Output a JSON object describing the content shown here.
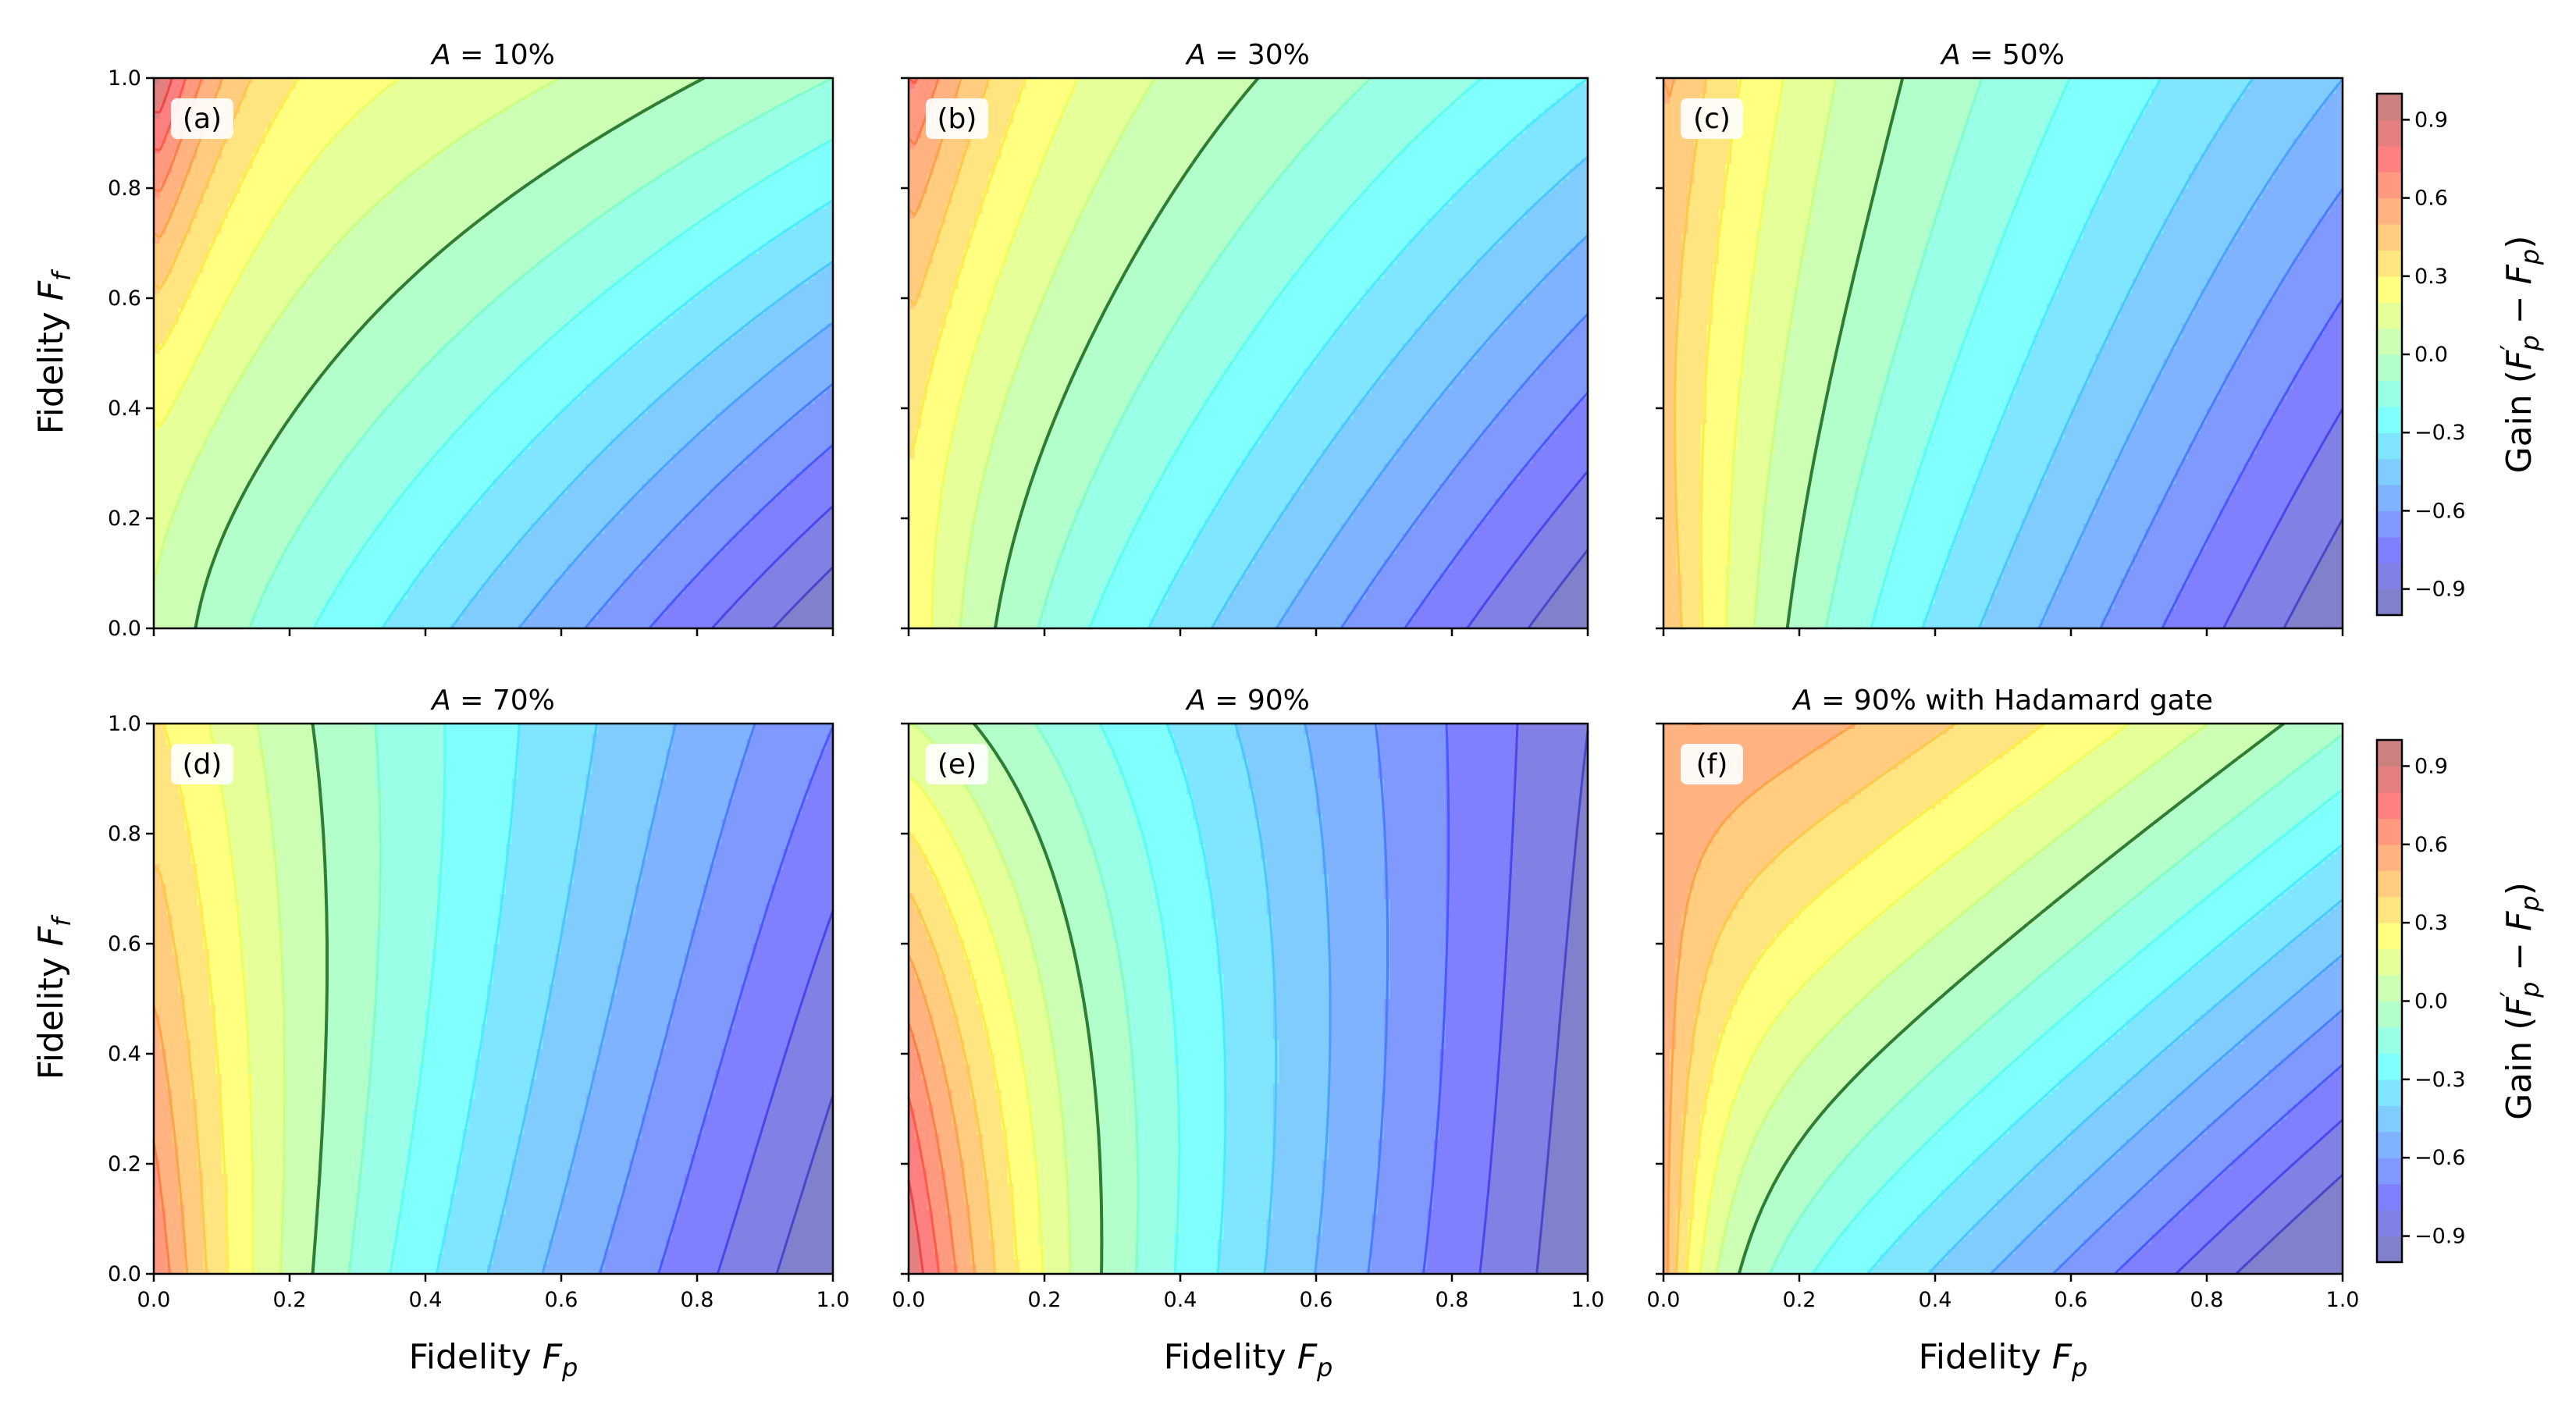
{
  "chart_data": {
    "type": "heatmap",
    "description_kind": "filled contour grid (2 rows x 3 columns) of gain vs fidelities",
    "xlabel": "Fidelity F_p",
    "ylabel": "Fidelity F_f",
    "xlim": [
      0.0,
      1.0
    ],
    "ylim": [
      0.0,
      1.0
    ],
    "xticks": [
      "0.0",
      "0.2",
      "0.4",
      "0.6",
      "0.8",
      "1.0"
    ],
    "yticks": [
      "0.0",
      "0.2",
      "0.4",
      "0.6",
      "0.8",
      "1.0"
    ],
    "contour_levels": [
      -1.0,
      -0.9,
      -0.8,
      -0.7,
      -0.6,
      -0.5,
      -0.4,
      -0.3,
      -0.2,
      -0.1,
      0.0,
      0.1,
      0.2,
      0.3,
      0.4,
      0.5,
      0.6,
      0.7,
      0.8,
      0.9,
      1.0
    ],
    "zero_contour": "dashed dark-green line",
    "colorbar": {
      "label": "Gain (F'_p − F_p)",
      "range": [
        -1.0,
        1.0
      ],
      "ticks": [
        "0.9",
        "0.6",
        "0.3",
        "0.0",
        "−0.3",
        "−0.6",
        "−0.9"
      ],
      "tick_values": [
        0.9,
        0.6,
        0.3,
        0.0,
        -0.3,
        -0.6,
        -0.9
      ],
      "colormap": "jet",
      "alpha": 0.5
    },
    "panels": [
      {
        "label": "(a)",
        "title": "A = 10%",
        "A": 0.1,
        "hadamard": false
      },
      {
        "label": "(b)",
        "title": "A = 30%",
        "A": 0.3,
        "hadamard": false
      },
      {
        "label": "(c)",
        "title": "A = 50%",
        "A": 0.5,
        "hadamard": false
      },
      {
        "label": "(d)",
        "title": "A = 70%",
        "A": 0.7,
        "hadamard": false
      },
      {
        "label": "(e)",
        "title": "A = 90%",
        "A": 0.9,
        "hadamard": false
      },
      {
        "label": "(f)",
        "title": "A = 90% with Hadamard gate",
        "A": 0.9,
        "hadamard": true
      }
    ]
  }
}
